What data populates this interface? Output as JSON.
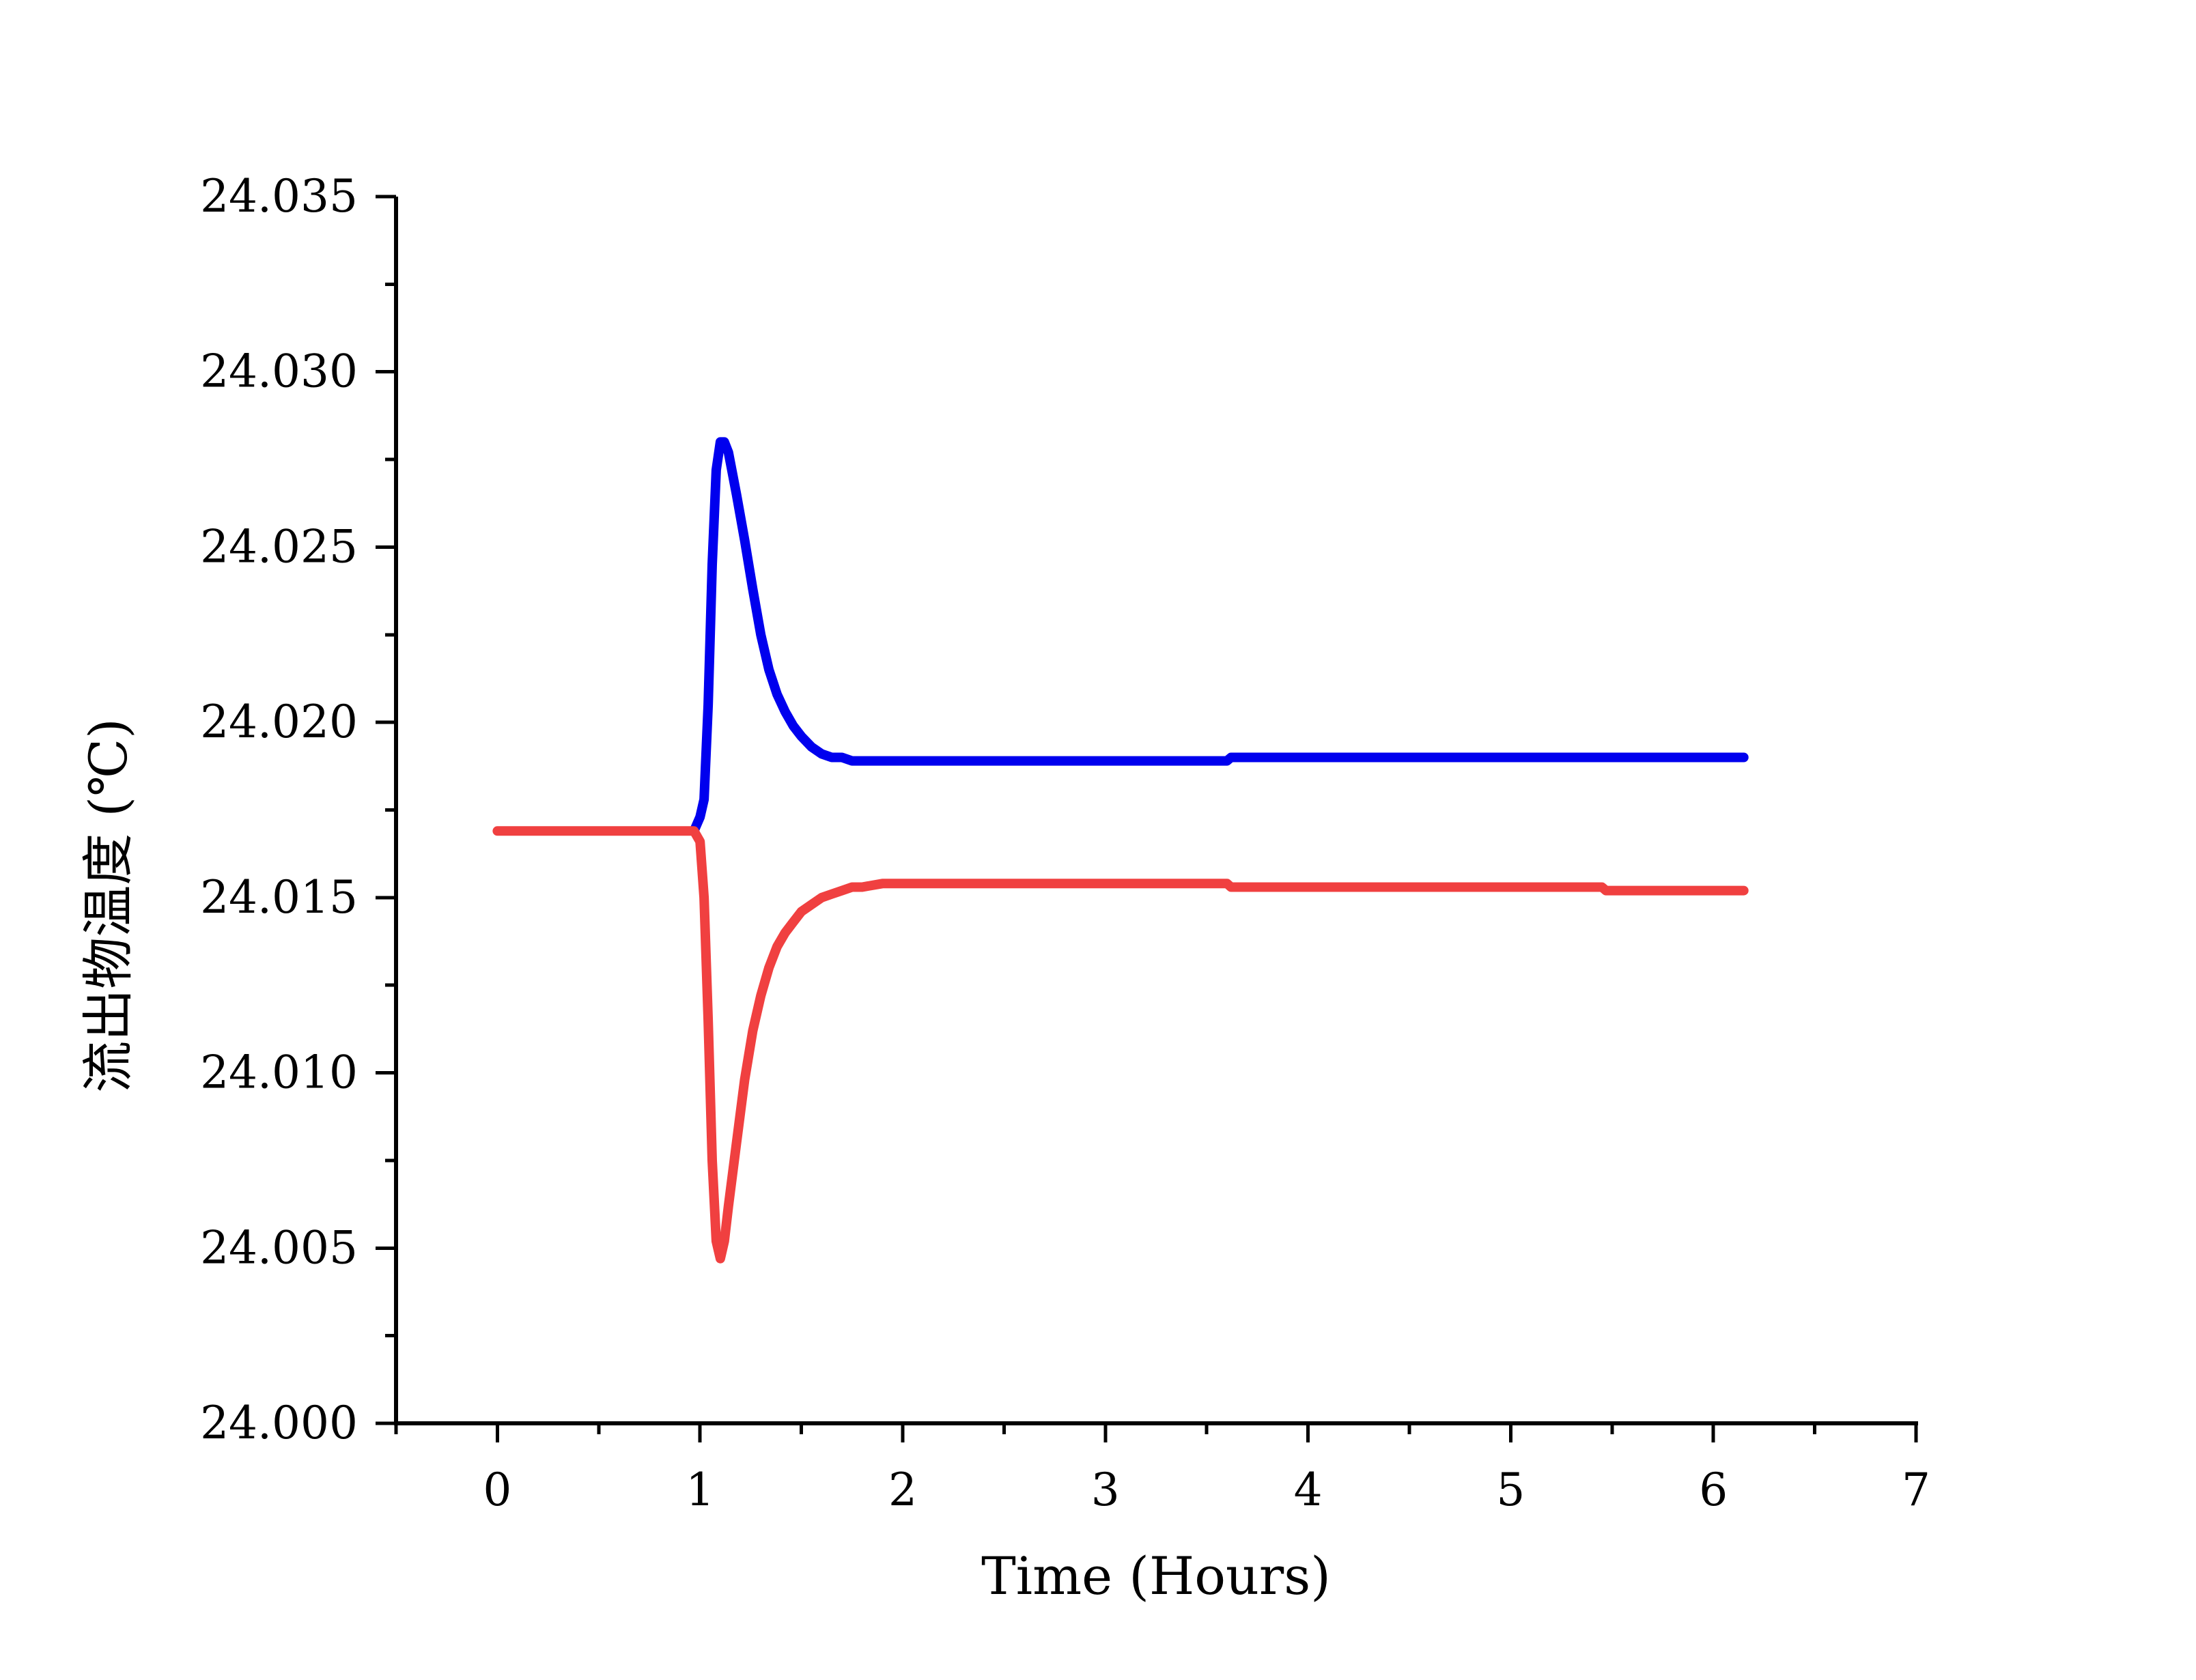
{
  "chart_data": {
    "type": "line",
    "title": "",
    "xlabel": "Time (Hours)",
    "ylabel": "流出物温度 (℃)",
    "xlim": [
      -0.5,
      7
    ],
    "ylim": [
      24.0,
      24.035
    ],
    "x_ticks": [
      0,
      1,
      2,
      3,
      4,
      5,
      6,
      7
    ],
    "x_tick_labels": [
      "0",
      "1",
      "2",
      "3",
      "4",
      "5",
      "6",
      "7"
    ],
    "x_minor_ticks": [
      -0.5,
      0.5,
      1.5,
      2.5,
      3.5,
      4.5,
      5.5,
      6.5
    ],
    "y_ticks": [
      24.0,
      24.005,
      24.01,
      24.015,
      24.02,
      24.025,
      24.03,
      24.035
    ],
    "y_tick_labels": [
      "24.000",
      "24.005",
      "24.010",
      "24.015",
      "24.020",
      "24.025",
      "24.030",
      "24.035"
    ],
    "y_minor_ticks": [
      24.0025,
      24.0075,
      24.0125,
      24.0175,
      24.0225,
      24.0275,
      24.0325
    ],
    "grid": false,
    "legend": "none",
    "series": [
      {
        "color": "#0000ee",
        "x": [
          0.97,
          1.0,
          1.02,
          1.04,
          1.06,
          1.08,
          1.1,
          1.12,
          1.14,
          1.18,
          1.22,
          1.26,
          1.3,
          1.34,
          1.38,
          1.42,
          1.46,
          1.5,
          1.55,
          1.6,
          1.65,
          1.7,
          1.75,
          1.8,
          2.0,
          3.0,
          3.6,
          3.62,
          4.0,
          5.0,
          6.0,
          6.15
        ],
        "y": [
          24.0169,
          24.0173,
          24.0178,
          24.0205,
          24.0245,
          24.0272,
          24.028,
          24.028,
          24.0277,
          24.0265,
          24.0252,
          24.0238,
          24.0225,
          24.0215,
          24.0208,
          24.0203,
          24.0199,
          24.0196,
          24.0193,
          24.0191,
          24.019,
          24.019,
          24.0189,
          24.0189,
          24.0189,
          24.0189,
          24.0189,
          24.019,
          24.019,
          24.019,
          24.019,
          24.019
        ]
      },
      {
        "color": "#f04040",
        "x": [
          0.0,
          0.5,
          0.97,
          1.0,
          1.02,
          1.04,
          1.06,
          1.08,
          1.1,
          1.12,
          1.14,
          1.18,
          1.22,
          1.26,
          1.3,
          1.34,
          1.38,
          1.42,
          1.46,
          1.5,
          1.55,
          1.6,
          1.65,
          1.7,
          1.75,
          1.8,
          1.9,
          2.0,
          3.0,
          3.6,
          3.62,
          4.0,
          5.0,
          5.45,
          5.47,
          6.0,
          6.15
        ],
        "y": [
          24.0169,
          24.0169,
          24.0169,
          24.0166,
          24.015,
          24.0115,
          24.0075,
          24.0052,
          24.0047,
          24.0052,
          24.0062,
          24.008,
          24.0098,
          24.0112,
          24.0122,
          24.013,
          24.0136,
          24.014,
          24.0143,
          24.0146,
          24.0148,
          24.015,
          24.0151,
          24.0152,
          24.0153,
          24.0153,
          24.0154,
          24.0154,
          24.0154,
          24.0154,
          24.0153,
          24.0153,
          24.0153,
          24.0153,
          24.0152,
          24.0152,
          24.0152
        ]
      }
    ]
  }
}
